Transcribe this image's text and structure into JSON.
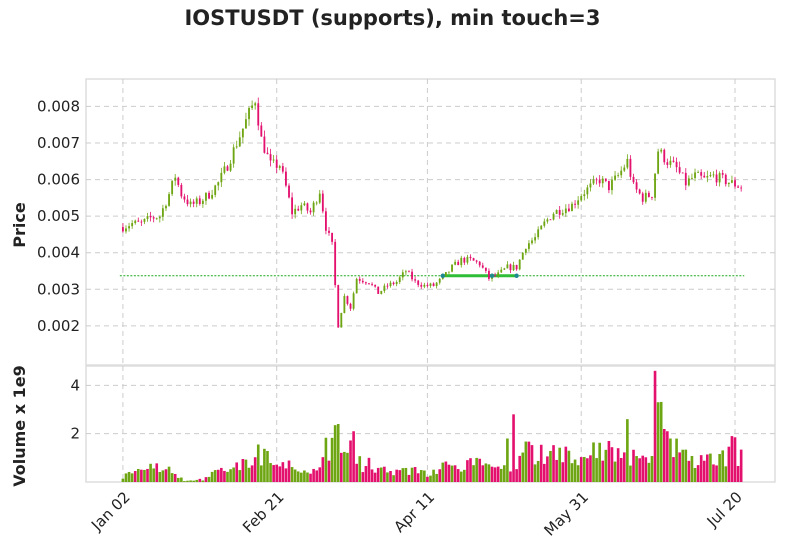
{
  "chart_data": {
    "type": "candlestick",
    "title": "IOSTUSDT (supports), min touch=3",
    "colors": {
      "up": "#6ea512",
      "down": "#e3106e",
      "support_line": "#1ba81b",
      "support_segment": "#2ebd37",
      "touch_point": "#1f8a8f",
      "grid": "#cccccc",
      "frame": "#dddddd"
    },
    "x_ticks": [
      {
        "label": "Jan 02",
        "day": 0
      },
      {
        "label": "Feb 21",
        "day": 50
      },
      {
        "label": "Apr 11",
        "day": 99
      },
      {
        "label": "May 31",
        "day": 149
      },
      {
        "label": "Jul 20",
        "day": 199
      }
    ],
    "day_range": [
      -12,
      212
    ],
    "price_panel": {
      "ylabel": "Price",
      "ylim": [
        0.00093,
        0.00875
      ],
      "y_ticks": [
        "0.002",
        "0.003",
        "0.004",
        "0.005",
        "0.006",
        "0.007",
        "0.008"
      ],
      "anchors": [
        [
          0,
          0.0047
        ],
        [
          3,
          0.0048
        ],
        [
          6,
          0.0048
        ],
        [
          9,
          0.00495
        ],
        [
          12,
          0.005
        ],
        [
          15,
          0.0056
        ],
        [
          17,
          0.0061
        ],
        [
          19,
          0.0056
        ],
        [
          22,
          0.0053
        ],
        [
          25,
          0.0054
        ],
        [
          28,
          0.0056
        ],
        [
          31,
          0.0059
        ],
        [
          34,
          0.0064
        ],
        [
          37,
          0.007
        ],
        [
          40,
          0.0076
        ],
        [
          43,
          0.0082
        ],
        [
          45,
          0.0071
        ],
        [
          48,
          0.0064
        ],
        [
          51,
          0.0064
        ],
        [
          53,
          0.0058
        ],
        [
          55,
          0.0051
        ],
        [
          58,
          0.0053
        ],
        [
          61,
          0.0051
        ],
        [
          64,
          0.0057
        ],
        [
          66,
          0.0047
        ],
        [
          68,
          0.0042
        ],
        [
          70,
          0.002
        ],
        [
          72,
          0.0028
        ],
        [
          74,
          0.0025
        ],
        [
          76,
          0.0033
        ],
        [
          80,
          0.0032
        ],
        [
          83,
          0.0029
        ],
        [
          86,
          0.0031
        ],
        [
          89,
          0.0032
        ],
        [
          92,
          0.0035
        ],
        [
          95,
          0.0032
        ],
        [
          98,
          0.0031
        ],
        [
          101,
          0.0031
        ],
        [
          104,
          0.0033
        ],
        [
          107,
          0.0036
        ],
        [
          110,
          0.0038
        ],
        [
          113,
          0.0038
        ],
        [
          116,
          0.0037
        ],
        [
          119,
          0.0033
        ],
        [
          122,
          0.0034
        ],
        [
          125,
          0.0036
        ],
        [
          128,
          0.0036
        ],
        [
          131,
          0.0042
        ],
        [
          134,
          0.0044
        ],
        [
          137,
          0.0048
        ],
        [
          140,
          0.0051
        ],
        [
          143,
          0.0052
        ],
        [
          146,
          0.0053
        ],
        [
          149,
          0.0056
        ],
        [
          152,
          0.0058
        ],
        [
          155,
          0.006
        ],
        [
          158,
          0.0058
        ],
        [
          161,
          0.0061
        ],
        [
          164,
          0.0065
        ],
        [
          166,
          0.0058
        ],
        [
          169,
          0.0055
        ],
        [
          172,
          0.0056
        ],
        [
          174,
          0.0068
        ],
        [
          177,
          0.0065
        ],
        [
          180,
          0.0063
        ],
        [
          183,
          0.0059
        ],
        [
          186,
          0.0061
        ],
        [
          189,
          0.006
        ],
        [
          192,
          0.0061
        ],
        [
          195,
          0.006
        ],
        [
          198,
          0.0059
        ],
        [
          201,
          0.0058
        ]
      ],
      "support_level": 0.00337,
      "support_line_range": [
        -1,
        202
      ],
      "support_segment_range": [
        104,
        128
      ],
      "touch_days": [
        104,
        120,
        128
      ]
    },
    "volume_panel": {
      "ylabel": "Volume x 1e9",
      "ylim": [
        0,
        4.8
      ],
      "y_ticks": [
        "2",
        "4"
      ],
      "anchors": [
        [
          0,
          0.25
        ],
        [
          8,
          0.45
        ],
        [
          12,
          0.75
        ],
        [
          16,
          0.4
        ],
        [
          20,
          0.05
        ],
        [
          26,
          0.1
        ],
        [
          30,
          0.4
        ],
        [
          36,
          0.55
        ],
        [
          42,
          0.85
        ],
        [
          46,
          1.3
        ],
        [
          50,
          0.5
        ],
        [
          56,
          0.7
        ],
        [
          60,
          0.55
        ],
        [
          64,
          0.7
        ],
        [
          66,
          1.3
        ],
        [
          69,
          2.1
        ],
        [
          72,
          0.9
        ],
        [
          74,
          2.0
        ],
        [
          78,
          0.6
        ],
        [
          84,
          0.5
        ],
        [
          90,
          0.4
        ],
        [
          96,
          0.5
        ],
        [
          100,
          0.35
        ],
        [
          106,
          0.8
        ],
        [
          110,
          0.6
        ],
        [
          114,
          0.8
        ],
        [
          120,
          0.5
        ],
        [
          126,
          0.6
        ],
        [
          130,
          1.3
        ],
        [
          134,
          1.2
        ],
        [
          140,
          1.3
        ],
        [
          146,
          1.1
        ],
        [
          152,
          1.3
        ],
        [
          158,
          1.3
        ],
        [
          162,
          1.2
        ],
        [
          166,
          1.0
        ],
        [
          170,
          0.8
        ],
        [
          174,
          3.0
        ],
        [
          178,
          1.5
        ],
        [
          182,
          1.0
        ],
        [
          186,
          0.8
        ],
        [
          190,
          0.8
        ],
        [
          194,
          1.0
        ],
        [
          198,
          1.2
        ],
        [
          201,
          1.1
        ]
      ],
      "spikes": [
        [
          70,
          2.4
        ],
        [
          75,
          2.1
        ],
        [
          80,
          1.0
        ],
        [
          125,
          1.8
        ],
        [
          127,
          2.8
        ],
        [
          161,
          1.4
        ],
        [
          164,
          2.6
        ],
        [
          173,
          4.6
        ],
        [
          174,
          3.3
        ],
        [
          177,
          2.1
        ],
        [
          178,
          1.8
        ],
        [
          198,
          1.9
        ],
        [
          199,
          1.85
        ]
      ]
    }
  }
}
